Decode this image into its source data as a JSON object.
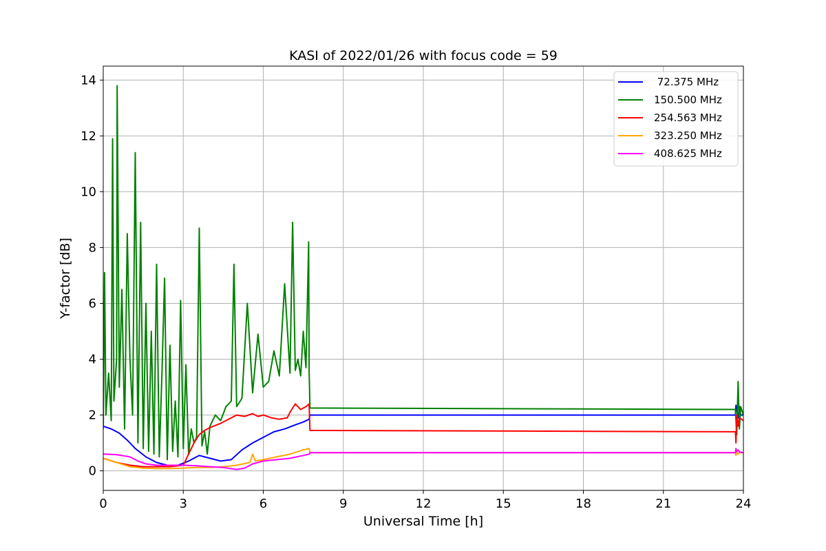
{
  "chart_data": {
    "type": "line",
    "title": "KASI of 2022/01/26 with focus code = 59",
    "xlabel": "Universal Time [h]",
    "ylabel": "Y-factor [dB]",
    "xlim": [
      0,
      24
    ],
    "ylim": [
      -0.7,
      14.5
    ],
    "xticks": [
      0,
      3,
      6,
      9,
      12,
      15,
      18,
      21,
      24
    ],
    "yticks": [
      0,
      2,
      4,
      6,
      8,
      10,
      12,
      14
    ],
    "grid": true,
    "legend_position": "top-right",
    "series": [
      {
        "name": " 72.375 MHz",
        "color": "#0000ff",
        "x": [
          0,
          0.3,
          0.6,
          0.9,
          1.2,
          1.6,
          2.0,
          2.4,
          2.8,
          3.2,
          3.6,
          4.0,
          4.4,
          4.8,
          5.2,
          5.6,
          6.0,
          6.4,
          6.8,
          7.2,
          7.5,
          7.72,
          7.75,
          23.7,
          23.72,
          23.75,
          23.8,
          23.85,
          23.9,
          24.0
        ],
        "y": [
          1.6,
          1.5,
          1.35,
          1.1,
          0.8,
          0.5,
          0.3,
          0.2,
          0.2,
          0.35,
          0.55,
          0.45,
          0.35,
          0.4,
          0.75,
          1.0,
          1.2,
          1.4,
          1.5,
          1.65,
          1.75,
          1.85,
          2.0,
          2.0,
          2.35,
          2.2,
          1.9,
          2.3,
          2.0,
          2.0
        ]
      },
      {
        "name": "150.500 MHz",
        "color": "#008000",
        "x": [
          0,
          0.05,
          0.1,
          0.2,
          0.3,
          0.35,
          0.4,
          0.5,
          0.52,
          0.6,
          0.7,
          0.8,
          0.9,
          1.0,
          1.1,
          1.2,
          1.3,
          1.4,
          1.5,
          1.6,
          1.7,
          1.8,
          1.9,
          2.0,
          2.1,
          2.2,
          2.3,
          2.4,
          2.5,
          2.6,
          2.7,
          2.8,
          2.9,
          3.0,
          3.1,
          3.2,
          3.3,
          3.4,
          3.5,
          3.6,
          3.7,
          3.8,
          3.9,
          4.0,
          4.2,
          4.4,
          4.6,
          4.8,
          4.9,
          5.0,
          5.2,
          5.4,
          5.6,
          5.8,
          6.0,
          6.2,
          6.4,
          6.6,
          6.8,
          7.0,
          7.1,
          7.2,
          7.3,
          7.4,
          7.5,
          7.6,
          7.7,
          7.72,
          7.75,
          23.7,
          23.75,
          23.8,
          23.85,
          23.9,
          24.0
        ],
        "y": [
          1.5,
          7.1,
          2.0,
          3.5,
          1.8,
          11.9,
          2.5,
          4.0,
          13.8,
          3.0,
          6.5,
          1.5,
          8.5,
          4.0,
          2.0,
          11.4,
          1.0,
          8.9,
          0.8,
          6.0,
          0.7,
          5.0,
          0.6,
          7.4,
          0.5,
          3.5,
          6.9,
          0.4,
          4.5,
          0.7,
          2.5,
          0.5,
          6.1,
          0.8,
          3.8,
          0.6,
          1.5,
          1.0,
          1.2,
          8.7,
          0.9,
          1.4,
          0.6,
          1.6,
          2.0,
          1.8,
          2.3,
          2.5,
          7.4,
          2.3,
          2.6,
          6.0,
          2.8,
          4.9,
          3.0,
          3.2,
          4.3,
          3.4,
          6.7,
          3.5,
          8.9,
          3.6,
          4.0,
          3.4,
          5.0,
          3.7,
          8.2,
          3.6,
          2.25,
          2.2,
          1.3,
          3.2,
          1.5,
          2.3,
          2.0
        ]
      },
      {
        "name": "254.563 MHz",
        "color": "#ff0000",
        "x": [
          0,
          0.5,
          1.0,
          1.5,
          2.0,
          2.5,
          3.0,
          3.2,
          3.4,
          3.6,
          3.8,
          4.0,
          4.4,
          4.8,
          5.0,
          5.3,
          5.6,
          5.8,
          6.0,
          6.3,
          6.6,
          6.9,
          7.0,
          7.2,
          7.4,
          7.6,
          7.72,
          7.75,
          23.7,
          23.72,
          23.75,
          23.8,
          23.85,
          24.0
        ],
        "y": [
          0.45,
          0.3,
          0.2,
          0.15,
          0.15,
          0.15,
          0.2,
          0.6,
          1.0,
          1.3,
          1.45,
          1.55,
          1.7,
          1.9,
          2.0,
          1.95,
          2.05,
          1.95,
          2.0,
          1.9,
          1.85,
          1.9,
          2.1,
          2.4,
          2.2,
          2.3,
          2.4,
          1.45,
          1.4,
          1.0,
          2.0,
          1.6,
          1.9,
          1.8
        ]
      },
      {
        "name": "323.250 MHz",
        "color": "#ffa500",
        "x": [
          0,
          0.5,
          1.0,
          1.5,
          2.0,
          2.5,
          3.0,
          3.5,
          4.0,
          4.5,
          5.0,
          5.5,
          5.6,
          5.7,
          6.0,
          6.5,
          7.0,
          7.5,
          7.72,
          7.75,
          23.7,
          23.72,
          23.75,
          23.8,
          23.85,
          24.0
        ],
        "y": [
          0.45,
          0.3,
          0.15,
          0.1,
          0.08,
          0.08,
          0.1,
          0.12,
          0.12,
          0.15,
          0.2,
          0.3,
          0.6,
          0.35,
          0.4,
          0.5,
          0.6,
          0.75,
          0.8,
          0.65,
          0.65,
          0.55,
          0.7,
          0.6,
          0.65,
          0.65
        ]
      },
      {
        "name": "408.625 MHz",
        "color": "#ff00ff",
        "x": [
          0,
          0.5,
          1.0,
          1.3,
          1.6,
          2.0,
          2.5,
          3.0,
          3.5,
          4.0,
          4.5,
          5.0,
          5.3,
          5.6,
          6.0,
          6.5,
          7.0,
          7.5,
          7.72,
          7.75,
          23.7,
          23.72,
          23.75,
          23.8,
          23.85,
          24.0
        ],
        "y": [
          0.6,
          0.58,
          0.5,
          0.35,
          0.25,
          0.2,
          0.2,
          0.2,
          0.18,
          0.15,
          0.12,
          0.05,
          0.1,
          0.25,
          0.35,
          0.4,
          0.45,
          0.55,
          0.6,
          0.65,
          0.65,
          0.8,
          0.7,
          0.75,
          0.68,
          0.65
        ]
      }
    ]
  }
}
